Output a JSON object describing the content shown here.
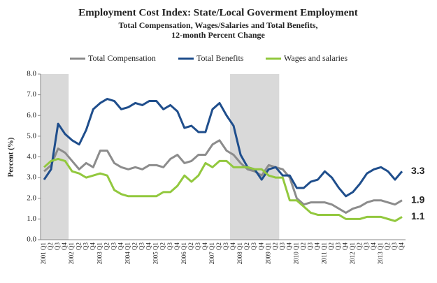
{
  "chart_data": {
    "type": "line",
    "title": "Employment Cost Index: State/Local Goverment Employment",
    "subtitle": [
      "Total Compensation, Wages/Salaries and Total Benefits,",
      "12-month Percent Change"
    ],
    "y_label": "Percent (%)",
    "categories": [
      "2001 Q1",
      "Q2",
      "Q3",
      "Q4",
      "2002 Q1",
      "Q2",
      "Q3",
      "Q4",
      "2003 Q1",
      "Q2",
      "Q3",
      "Q4",
      "2004 Q1",
      "Q2",
      "Q3",
      "Q4",
      "2005 Q1",
      "Q2",
      "Q3",
      "Q4",
      "2006 Q1",
      "Q2",
      "Q3",
      "Q4",
      "2007 Q1",
      "Q2",
      "Q3",
      "Q4",
      "2008 Q1",
      "Q2",
      "Q3",
      "Q4",
      "2009 Q1",
      "Q2",
      "Q3",
      "Q4",
      "2010 Q1",
      "Q2",
      "Q3",
      "Q4",
      "2011 Q1",
      "Q2",
      "Q3",
      "Q4",
      "2012 Q1",
      "Q2",
      "Q3",
      "Q4",
      "2013 Q1",
      "Q2",
      "Q3",
      "Q4"
    ],
    "shaded_ranges": [
      [
        0,
        3
      ],
      [
        27,
        33
      ]
    ],
    "shade_color": "#d9d9d9",
    "series": [
      {
        "name": "Total Compensation",
        "color": "#8c8c8c",
        "end_label": "1.9",
        "values": [
          3.3,
          3.6,
          4.4,
          4.2,
          3.8,
          3.4,
          3.7,
          3.5,
          4.3,
          4.3,
          3.7,
          3.5,
          3.4,
          3.5,
          3.4,
          3.6,
          3.6,
          3.5,
          3.9,
          4.1,
          3.7,
          3.8,
          4.1,
          4.1,
          4.6,
          4.8,
          4.3,
          4.1,
          3.7,
          3.4,
          3.3,
          3.1,
          3.6,
          3.5,
          3.4,
          3.0,
          2.0,
          1.7,
          1.8,
          1.8,
          1.8,
          1.7,
          1.5,
          1.3,
          1.5,
          1.6,
          1.8,
          1.9,
          1.9,
          1.8,
          1.7,
          1.9
        ]
      },
      {
        "name": "Total Benefits",
        "color": "#1f4e8c",
        "end_label": "3.3",
        "values": [
          2.9,
          3.4,
          5.6,
          5.1,
          4.8,
          4.6,
          5.3,
          6.3,
          6.6,
          6.8,
          6.7,
          6.3,
          6.4,
          6.6,
          6.5,
          6.7,
          6.7,
          6.3,
          6.5,
          6.2,
          5.4,
          5.5,
          5.2,
          5.2,
          6.3,
          6.6,
          6.0,
          5.5,
          4.1,
          3.5,
          3.4,
          2.9,
          3.4,
          3.5,
          3.1,
          3.1,
          2.5,
          2.5,
          2.8,
          2.9,
          3.3,
          3.0,
          2.5,
          2.1,
          2.3,
          2.7,
          3.2,
          3.4,
          3.5,
          3.3,
          2.9,
          3.3
        ]
      },
      {
        "name": "Wages and salaries",
        "color": "#92c83e",
        "end_label": "1.1",
        "values": [
          3.5,
          3.8,
          3.9,
          3.8,
          3.3,
          3.2,
          3.0,
          3.1,
          3.2,
          3.1,
          2.4,
          2.2,
          2.1,
          2.1,
          2.1,
          2.1,
          2.1,
          2.3,
          2.3,
          2.6,
          3.1,
          2.8,
          3.1,
          3.7,
          3.5,
          3.8,
          3.8,
          3.5,
          3.5,
          3.5,
          3.4,
          3.4,
          3.1,
          3.0,
          3.0,
          1.9,
          1.9,
          1.6,
          1.3,
          1.2,
          1.2,
          1.2,
          1.2,
          1.0,
          1.0,
          1.0,
          1.1,
          1.1,
          1.1,
          1.0,
          0.9,
          1.1
        ]
      }
    ],
    "ylim": [
      0,
      8
    ],
    "yticks": [
      {
        "value": 0,
        "label": "0.0"
      },
      {
        "value": 1,
        "label": "1.0"
      },
      {
        "value": 2,
        "label": "2.0"
      },
      {
        "value": 3,
        "label": "3.0"
      },
      {
        "value": 4,
        "label": "4.0"
      },
      {
        "value": 5,
        "label": "5.0"
      },
      {
        "value": 6,
        "label": "6.0"
      },
      {
        "value": 7,
        "label": "7.0"
      },
      {
        "value": 8,
        "label": "8.0"
      }
    ],
    "legend": "top",
    "grid": false
  }
}
